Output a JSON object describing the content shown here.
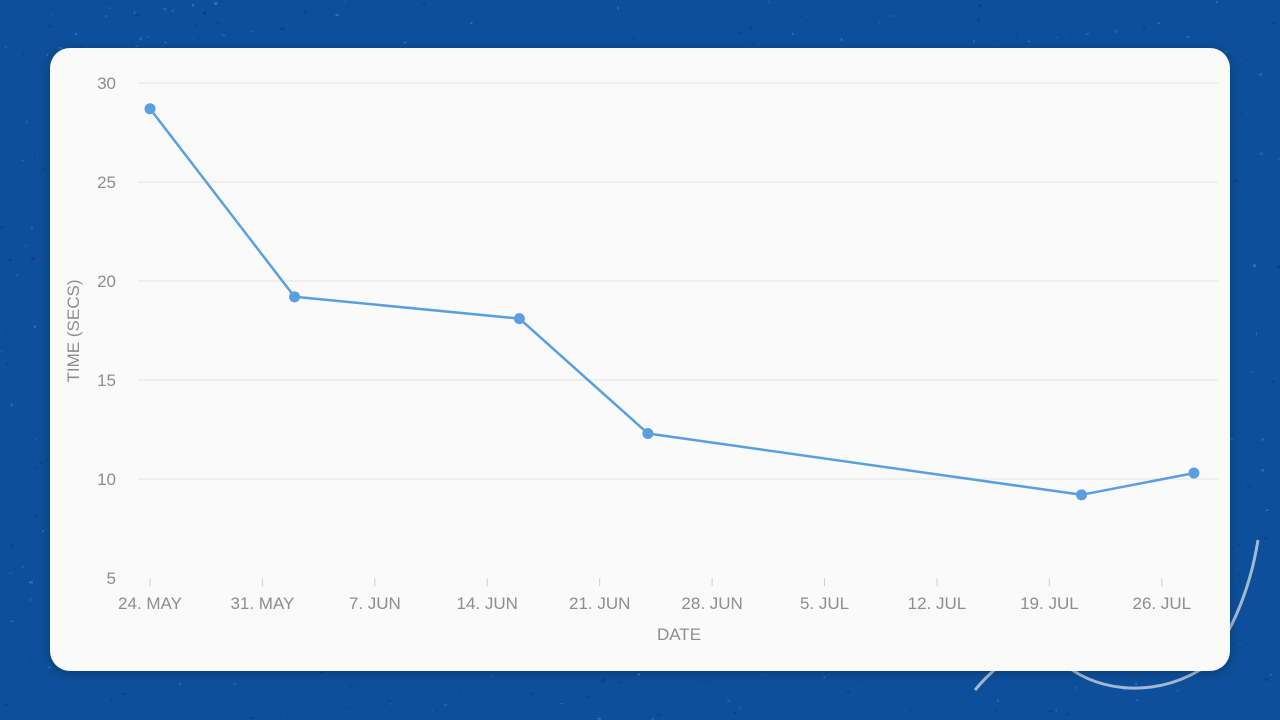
{
  "colors": {
    "background": "#0d4f9a",
    "card": "#fafafa",
    "series": "#5a9fe0",
    "axis_text": "#8e8e8e",
    "grid": "#e4e4e4"
  },
  "chart_data": {
    "type": "line",
    "title": "",
    "xlabel": "DATE",
    "ylabel": "TIME (SECS)",
    "x_start": "2024-05-24",
    "x_end": "2024-07-29",
    "x_ticks": [
      "24. MAY",
      "31. MAY",
      "7. JUN",
      "14. JUN",
      "21. JUN",
      "28. JUN",
      "5. JUL",
      "12. JUL",
      "19. JUL",
      "26. JUL"
    ],
    "y_ticks": [
      5,
      10,
      15,
      20,
      25,
      30
    ],
    "ylim": [
      5,
      30
    ],
    "grid": true,
    "legend": "none",
    "series": [
      {
        "points": [
          {
            "x": "2024-05-24",
            "y": 28.7
          },
          {
            "x": "2024-06-02",
            "y": 19.2
          },
          {
            "x": "2024-06-16",
            "y": 18.1
          },
          {
            "x": "2024-06-24",
            "y": 12.3
          },
          {
            "x": "2024-07-21",
            "y": 9.2
          },
          {
            "x": "2024-07-28",
            "y": 10.3
          }
        ]
      }
    ]
  }
}
